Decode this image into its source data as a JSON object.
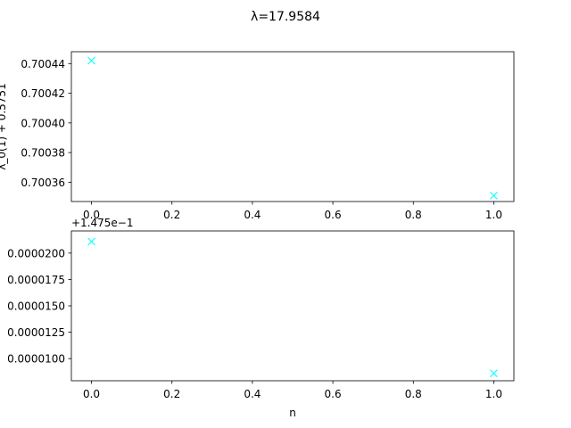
{
  "figure": {
    "suptitle": "λ=17.9584"
  },
  "chart_data": [
    {
      "type": "scatter",
      "marker": "x",
      "color": "#00ffff",
      "xlim": [
        -0.05,
        1.05
      ],
      "ylim": [
        0.700347,
        0.700448
      ],
      "x_ticks": [
        0.0,
        0.2,
        0.4,
        0.6,
        0.8,
        1.0
      ],
      "x_tick_labels": [
        "0.0",
        "0.2",
        "0.4",
        "0.6",
        "0.8",
        "1.0"
      ],
      "y_ticks": [
        0.70036,
        0.70038,
        0.7004,
        0.70042,
        0.70044
      ],
      "y_tick_labels": [
        "0.70036",
        "0.70038",
        "0.70040",
        "0.70042",
        "0.70044"
      ],
      "ylabel": "λ_0(1) + 0.5751",
      "xlabel": "",
      "offset_text": "",
      "points": [
        {
          "x": 0,
          "y": 0.700442
        },
        {
          "x": 1,
          "y": 0.700351
        }
      ]
    },
    {
      "type": "scatter",
      "marker": "x",
      "color": "#00ffff",
      "xlim": [
        -0.05,
        1.05
      ],
      "ylim": [
        7.9e-06,
        2.21e-05
      ],
      "x_ticks": [
        0.0,
        0.2,
        0.4,
        0.6,
        0.8,
        1.0
      ],
      "x_tick_labels": [
        "0.0",
        "0.2",
        "0.4",
        "0.6",
        "0.8",
        "1.0"
      ],
      "y_ticks": [
        1e-05,
        1.25e-05,
        1.5e-05,
        1.75e-05,
        2e-05
      ],
      "y_tick_labels": [
        "0.0000100",
        "0.0000125",
        "0.0000150",
        "0.0000175",
        "0.0000200"
      ],
      "ylabel": "",
      "xlabel": "n",
      "offset_text": "+1.475e−1",
      "points": [
        {
          "x": 0,
          "y": 2.11e-05
        },
        {
          "x": 1,
          "y": 8.6e-06
        }
      ]
    }
  ]
}
